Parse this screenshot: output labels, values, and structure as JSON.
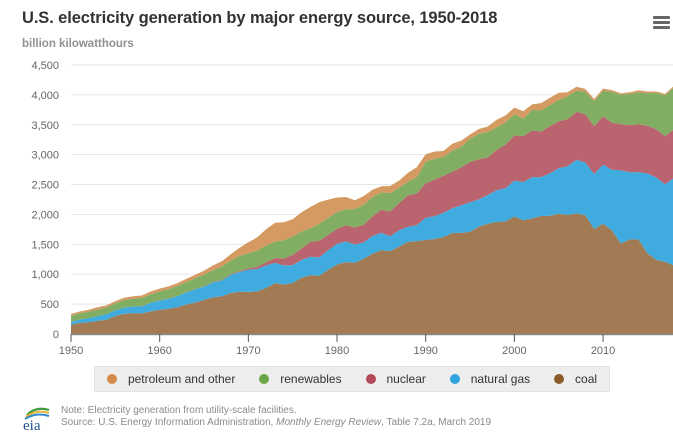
{
  "header": {
    "title": "U.S. electricity generation by major energy source, 1950-2018",
    "subtitle": "billion kilowatthours",
    "menu_icon": "hamburger-menu-icon"
  },
  "legend": [
    {
      "label": "petroleum and other",
      "color": "#d38b4b"
    },
    {
      "label": "renewables",
      "color": "#6da544"
    },
    {
      "label": "nuclear",
      "color": "#b24958"
    },
    {
      "label": "natural gas",
      "color": "#2fa3dd"
    },
    {
      "label": "coal",
      "color": "#9a6a3f"
    }
  ],
  "footer": {
    "logo_text": "eia",
    "note": "Note: Electricity generation from utility-scale facilities.",
    "source_prefix": "Source: U.S. Energy Information Administration, ",
    "source_italic": "Monthly Energy Review",
    "source_suffix": ", Table 7.2a, March 2019"
  },
  "chart_data": {
    "type": "area",
    "stacked": true,
    "title": "U.S. electricity generation by major energy source, 1950-2018",
    "xlabel": "",
    "ylabel": "billion kilowatthours",
    "xlim": [
      1950,
      2018
    ],
    "ylim": [
      0,
      4500
    ],
    "yticks": [
      0,
      500,
      1000,
      1500,
      2000,
      2500,
      3000,
      3500,
      4000,
      4500
    ],
    "ytick_labels": [
      "0",
      "500",
      "1,000",
      "1,500",
      "2,000",
      "2,500",
      "3,000",
      "3,500",
      "4,000",
      "4,500"
    ],
    "xticks": [
      1950,
      1960,
      1970,
      1980,
      1990,
      2000,
      2010
    ],
    "grid": true,
    "legend_position": "bottom",
    "x": [
      1950,
      1951,
      1952,
      1953,
      1954,
      1955,
      1956,
      1957,
      1958,
      1959,
      1960,
      1961,
      1962,
      1963,
      1964,
      1965,
      1966,
      1967,
      1968,
      1969,
      1970,
      1971,
      1972,
      1973,
      1974,
      1975,
      1976,
      1977,
      1978,
      1979,
      1980,
      1981,
      1982,
      1983,
      1984,
      1985,
      1986,
      1987,
      1988,
      1989,
      1990,
      1991,
      1992,
      1993,
      1994,
      1995,
      1996,
      1997,
      1998,
      1999,
      2000,
      2001,
      2002,
      2003,
      2004,
      2005,
      2006,
      2007,
      2008,
      2009,
      2010,
      2011,
      2012,
      2013,
      2014,
      2015,
      2016,
      2017,
      2018
    ],
    "series": [
      {
        "name": "coal",
        "color": "#a27b54",
        "values": [
          155,
          185,
          195,
          219,
          239,
          301,
          338,
          346,
          344,
          378,
          403,
          422,
          450,
          494,
          526,
          571,
          613,
          630,
          685,
          706,
          704,
          713,
          771,
          848,
          828,
          853,
          944,
          985,
          976,
          1075,
          1162,
          1203,
          1192,
          1259,
          1342,
          1402,
          1386,
          1464,
          1541,
          1554,
          1572,
          1590,
          1621,
          1690,
          1691,
          1709,
          1796,
          1845,
          1874,
          1884,
          1966,
          1904,
          1933,
          1974,
          1978,
          2013,
          1991,
          2016,
          1986,
          1756,
          1847,
          1733,
          1514,
          1581,
          1582,
          1352,
          1239,
          1206,
          1146
        ]
      },
      {
        "name": "natural gas",
        "color": "#3fabde",
        "values": [
          45,
          57,
          68,
          80,
          94,
          95,
          104,
          114,
          118,
          146,
          158,
          169,
          184,
          202,
          221,
          222,
          251,
          265,
          304,
          333,
          373,
          374,
          376,
          341,
          320,
          300,
          295,
          306,
          305,
          329,
          346,
          346,
          305,
          274,
          297,
          292,
          249,
          273,
          253,
          267,
          373,
          382,
          404,
          415,
          460,
          496,
          455,
          480,
          531,
          556,
          601,
          639,
          691,
          650,
          710,
          761,
          816,
          897,
          883,
          921,
          988,
          1014,
          1226,
          1125,
          1127,
          1334,
          1379,
          1297,
          1469
        ]
      },
      {
        "name": "nuclear",
        "color": "#b9646e",
        "values": [
          0,
          0,
          0,
          0,
          0,
          0,
          0,
          0,
          0,
          0,
          1,
          2,
          2,
          3,
          3,
          4,
          6,
          8,
          13,
          14,
          22,
          38,
          54,
          83,
          114,
          173,
          191,
          251,
          276,
          255,
          251,
          273,
          283,
          294,
          328,
          384,
          414,
          455,
          527,
          529,
          577,
          613,
          619,
          610,
          640,
          673,
          675,
          629,
          674,
          728,
          754,
          769,
          780,
          764,
          789,
          782,
          787,
          806,
          806,
          799,
          807,
          790,
          769,
          789,
          797,
          797,
          806,
          805,
          807
        ]
      },
      {
        "name": "renewables",
        "color": "#82ae63",
        "values": [
          101,
          104,
          110,
          111,
          112,
          117,
          125,
          132,
          142,
          142,
          149,
          154,
          167,
          171,
          181,
          196,
          198,
          226,
          226,
          253,
          251,
          271,
          277,
          275,
          305,
          304,
          288,
          224,
          284,
          285,
          279,
          264,
          311,
          336,
          325,
          291,
          308,
          256,
          227,
          276,
          357,
          348,
          318,
          353,
          340,
          384,
          422,
          425,
          377,
          370,
          356,
          288,
          343,
          355,
          351,
          358,
          385,
          352,
          380,
          418,
          427,
          513,
          495,
          522,
          540,
          545,
          609,
          687,
          707
        ]
      },
      {
        "name": "petroleum and other",
        "color": "#d49a62",
        "values": [
          34,
          30,
          33,
          36,
          33,
          37,
          38,
          40,
          40,
          47,
          48,
          49,
          48,
          52,
          57,
          65,
          78,
          89,
          104,
          138,
          184,
          220,
          274,
          314,
          301,
          289,
          320,
          358,
          365,
          304,
          246,
          206,
          147,
          144,
          120,
          101,
          118,
          119,
          149,
          165,
          127,
          120,
          100,
          113,
          105,
          75,
          81,
          93,
          128,
          118,
          111,
          126,
          94,
          119,
          121,
          122,
          64,
          65,
          46,
          38,
          37,
          30,
          23,
          27,
          30,
          28,
          24,
          21,
          25
        ]
      }
    ]
  }
}
